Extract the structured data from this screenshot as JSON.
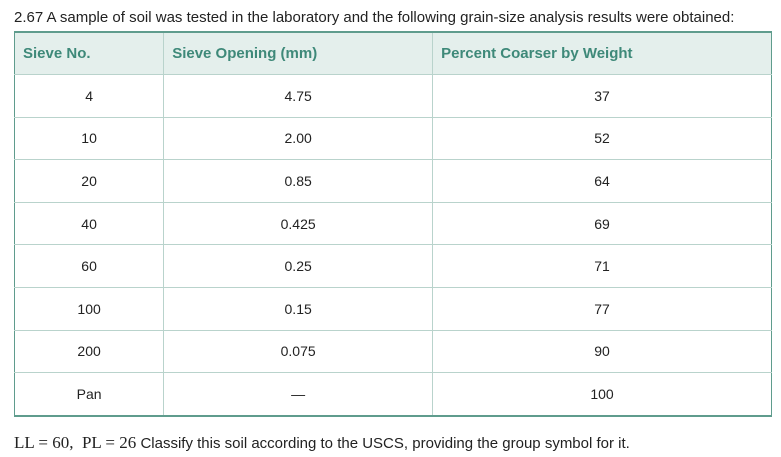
{
  "intro": "2.67 A sample of soil was tested in the laboratory and the following grain-size analysis results were obtained:",
  "table": {
    "headers": [
      "Sieve No.",
      "Sieve Opening (mm)",
      "Percent Coarser by Weight"
    ],
    "rows": [
      [
        "4",
        "4.75",
        "37"
      ],
      [
        "10",
        "2.00",
        "52"
      ],
      [
        "20",
        "0.85",
        "64"
      ],
      [
        "40",
        "0.425",
        "69"
      ],
      [
        "60",
        "0.25",
        "71"
      ],
      [
        "100",
        "0.15",
        "77"
      ],
      [
        "200",
        "0.075",
        "90"
      ],
      [
        "Pan",
        "—",
        "100"
      ]
    ]
  },
  "footer": {
    "math": "LL = 60,  PL = 26",
    "text": "Classify this soil according to the USCS, providing the group symbol for it."
  }
}
